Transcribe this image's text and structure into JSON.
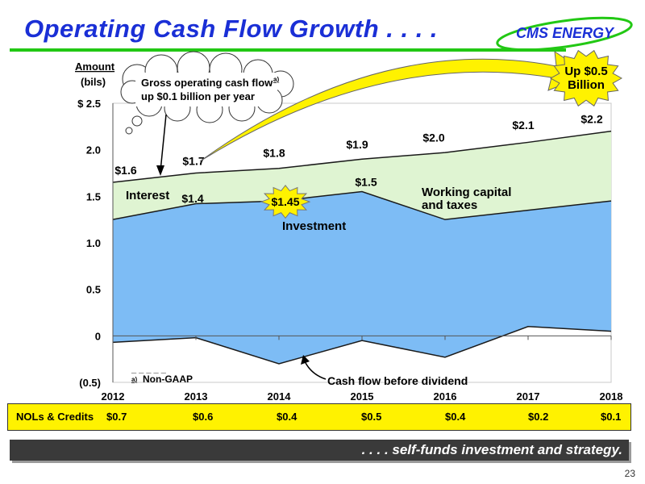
{
  "slide": {
    "title": "Operating Cash Flow Growth . . . .",
    "logo_text": "CMS ENERGY",
    "footer": ". . . . self-funds investment and strategy.",
    "page_number": "23",
    "colors": {
      "title": "#1a2fd6",
      "rule": "#22c814",
      "investment": "#7dbcf5",
      "working": "#dff4d2",
      "callout": "#fff200"
    }
  },
  "chart_data": {
    "type": "area",
    "ylabel": "Amount",
    "yunit": "(bils)",
    "ylim": [
      -0.5,
      2.5
    ],
    "yticks": [
      {
        "v": 2.5,
        "label": "$ 2.5"
      },
      {
        "v": 2.0,
        "label": "2.0"
      },
      {
        "v": 1.5,
        "label": "1.5"
      },
      {
        "v": 1.0,
        "label": "1.0"
      },
      {
        "v": 0.5,
        "label": "0.5"
      },
      {
        "v": 0,
        "label": "0"
      },
      {
        "v": -0.5,
        "label": "(0.5)"
      }
    ],
    "x": [
      "2012",
      "2013",
      "2014",
      "2015",
      "2016",
      "2017",
      "2018"
    ],
    "gross_operating_cash_flow": [
      1.65,
      1.75,
      1.8,
      1.9,
      1.97,
      2.08,
      2.2
    ],
    "investment": [
      1.25,
      1.42,
      1.45,
      1.55,
      1.25,
      1.35,
      1.45
    ],
    "cash_flow_before_dividend": [
      -0.07,
      -0.02,
      -0.3,
      -0.05,
      -0.23,
      0.1,
      0.05
    ],
    "labels": {
      "gross": [
        {
          "i": 0,
          "v": 1.6,
          "text": "$1.6"
        },
        {
          "i": 1,
          "v": 1.7,
          "text": "$1.7"
        },
        {
          "i": 2,
          "v": 1.8,
          "text": "$1.8"
        },
        {
          "i": 3,
          "v": 1.9,
          "text": "$1.9"
        },
        {
          "i": 4,
          "v": 2.0,
          "text": "$2.0"
        },
        {
          "i": 5,
          "v": 2.1,
          "text": "$2.1"
        },
        {
          "i": 6,
          "v": 2.2,
          "text": "$2.2"
        }
      ],
      "investment": [
        {
          "i": 1,
          "v": 1.4,
          "text": "$1.4"
        },
        {
          "i": 2,
          "v": 1.45,
          "text": "$1.45"
        },
        {
          "i": 3,
          "v": 1.5,
          "text": "$1.5"
        }
      ]
    },
    "annotations": {
      "interest": "Interest",
      "investment": "Investment",
      "working_capital": [
        "Working capital",
        "and taxes"
      ],
      "cloud": [
        "Gross operating cash flow",
        "up $0.1 billion per year"
      ],
      "cloud_marker": "a)",
      "up_label": [
        "Up $0.5",
        "Billion"
      ],
      "cash_flow": "Cash flow before dividend",
      "footnote_marker": "a)",
      "footnote": "Non-GAAP",
      "footnote_rule": "_ _ _ _ _"
    }
  },
  "nols": {
    "label": "NOLs & Credits",
    "values": [
      "$0.7",
      "$0.6",
      "$0.4",
      "$0.5",
      "$0.4",
      "$0.2",
      "$0.1"
    ]
  }
}
